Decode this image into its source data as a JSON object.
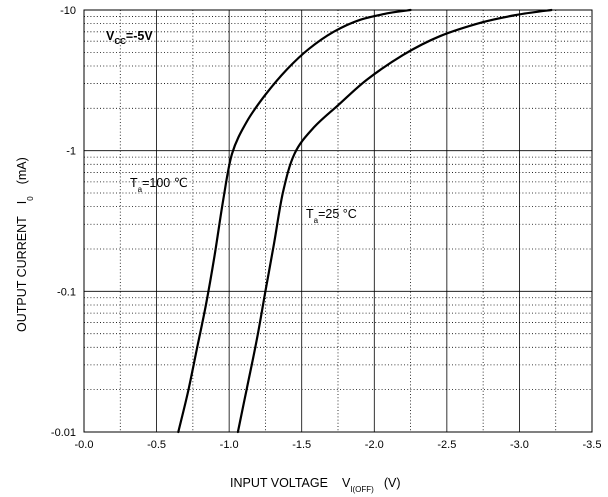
{
  "chart_data": {
    "type": "line",
    "xlabel_main": "INPUT VOLTAGE",
    "xlabel_sym": "V",
    "xlabel_sub": "I(OFF)",
    "xlabel_unit": "(V)",
    "ylabel_main": "OUTPUT CURRENT",
    "ylabel_sym": "I",
    "ylabel_sub": "0",
    "ylabel_unit": "(mA)",
    "xlim": [
      0,
      -3.5
    ],
    "ylim": [
      -0.01,
      -10
    ],
    "yscale": "log",
    "grid": true,
    "x_ticks": [
      "-0.0",
      "-0.5",
      "-1.0",
      "-1.5",
      "-2.0",
      "-2.5",
      "-3.0",
      "-3.5"
    ],
    "y_ticks": [
      "-10",
      "-1",
      "-0.1",
      "-0.01"
    ],
    "condition": {
      "main": "V",
      "sub": "CC",
      "value": "=-5V"
    },
    "series": [
      {
        "label_main": "T",
        "label_sub": "a",
        "label_value": "=100 ℃",
        "points": [
          [
            -0.65,
            -0.01
          ],
          [
            -0.72,
            -0.02
          ],
          [
            -0.78,
            -0.04
          ],
          [
            -0.84,
            -0.08
          ],
          [
            -0.9,
            -0.18
          ],
          [
            -0.96,
            -0.45
          ],
          [
            -1.02,
            -0.95
          ],
          [
            -1.12,
            -1.6
          ],
          [
            -1.25,
            -2.5
          ],
          [
            -1.4,
            -3.8
          ],
          [
            -1.55,
            -5.3
          ],
          [
            -1.72,
            -7.0
          ],
          [
            -1.9,
            -8.5
          ],
          [
            -2.1,
            -9.5
          ],
          [
            -2.25,
            -10
          ]
        ]
      },
      {
        "label_main": "T",
        "label_sub": "a",
        "label_value": "=25 °C",
        "points": [
          [
            -1.06,
            -0.01
          ],
          [
            -1.12,
            -0.02
          ],
          [
            -1.19,
            -0.045
          ],
          [
            -1.25,
            -0.1
          ],
          [
            -1.31,
            -0.22
          ],
          [
            -1.37,
            -0.5
          ],
          [
            -1.45,
            -0.95
          ],
          [
            -1.58,
            -1.45
          ],
          [
            -1.75,
            -2.1
          ],
          [
            -1.95,
            -3.2
          ],
          [
            -2.2,
            -4.8
          ],
          [
            -2.45,
            -6.5
          ],
          [
            -2.75,
            -8.2
          ],
          [
            -3.0,
            -9.3
          ],
          [
            -3.22,
            -10
          ]
        ]
      }
    ]
  }
}
